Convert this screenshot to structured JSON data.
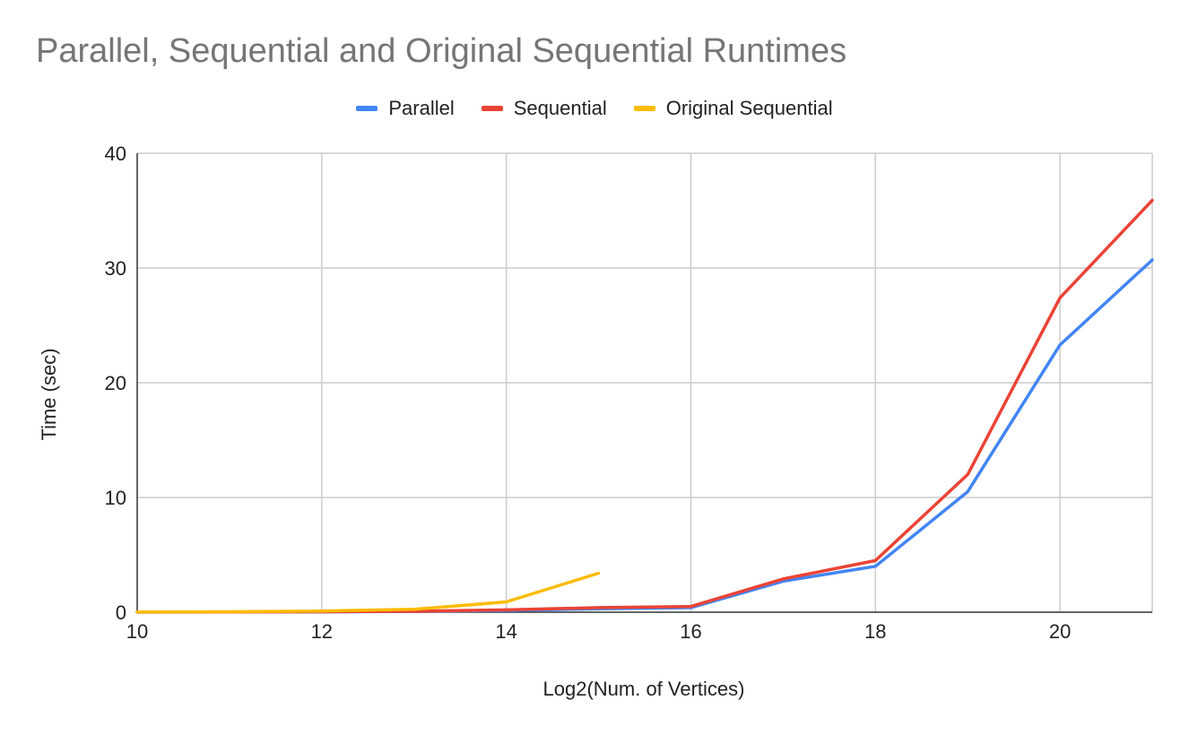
{
  "chart_data": {
    "type": "line",
    "title": "Parallel, Sequential and Original Sequential Runtimes",
    "xlabel": "Log2(Num. of Vertices)",
    "ylabel": "Time (sec)",
    "xlim": [
      10,
      21
    ],
    "ylim": [
      0,
      40
    ],
    "x_ticks": [
      10,
      12,
      14,
      16,
      18,
      20
    ],
    "y_ticks": [
      0,
      10,
      20,
      30,
      40
    ],
    "grid": true,
    "legend_position": "top",
    "series": [
      {
        "name": "Parallel",
        "color": "#4285f4",
        "x": [
          10,
          11,
          12,
          13,
          14,
          15,
          16,
          17,
          18,
          19,
          20,
          21
        ],
        "values": [
          0.01,
          0.02,
          0.03,
          0.07,
          0.15,
          0.3,
          0.4,
          2.7,
          4.0,
          10.5,
          23.3,
          30.7
        ]
      },
      {
        "name": "Sequential",
        "color": "#ea4335",
        "x": [
          10,
          11,
          12,
          13,
          14,
          15,
          16,
          17,
          18,
          19,
          20,
          21
        ],
        "values": [
          0.01,
          0.02,
          0.04,
          0.08,
          0.2,
          0.4,
          0.5,
          2.9,
          4.5,
          12.0,
          27.4,
          35.9
        ]
      },
      {
        "name": "Original Sequential",
        "color": "#fbbc04",
        "x": [
          10,
          11,
          12,
          13,
          14,
          15
        ],
        "values": [
          0.02,
          0.04,
          0.1,
          0.25,
          0.9,
          3.4
        ]
      }
    ]
  }
}
